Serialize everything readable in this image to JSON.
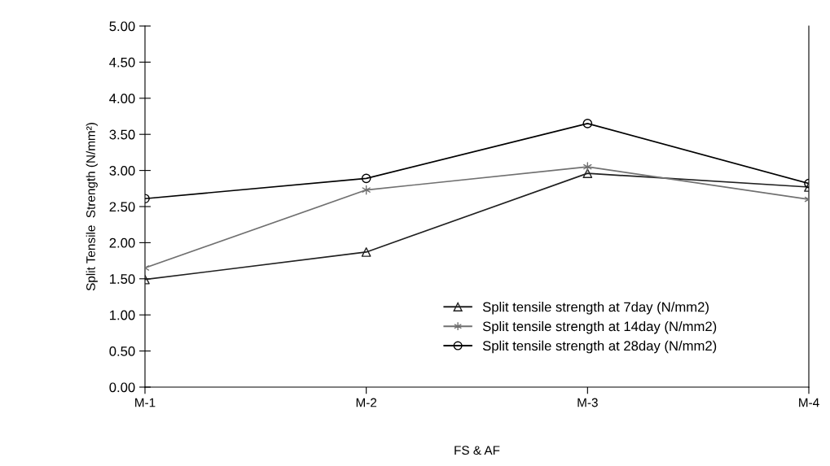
{
  "chart_data": {
    "type": "line",
    "xlabel": "FS & AF",
    "ylabel": "Split Tensile  Strength (N/mm²)",
    "categories": [
      "M-1",
      "M-2",
      "M-3",
      "M-4"
    ],
    "series": [
      {
        "name": "Split tensile strength at 7day (N/mm2)",
        "color": "#202020",
        "marker": "triangle",
        "values": [
          1.49,
          1.87,
          2.96,
          2.77
        ]
      },
      {
        "name": "Split tensile strength at 14day (N/mm2)",
        "color": "#707070",
        "marker": "cross",
        "values": [
          1.65,
          2.73,
          3.05,
          2.6
        ]
      },
      {
        "name": "Split tensile strength at 28day (N/mm2)",
        "color": "#000000",
        "marker": "circle",
        "values": [
          2.61,
          2.89,
          3.65,
          2.82
        ]
      }
    ],
    "ylim": [
      0,
      5
    ],
    "yticks": [
      {
        "value": 0,
        "label": "0.00"
      },
      {
        "value": 0.5,
        "label": "0.50"
      },
      {
        "value": 1,
        "label": "1.00"
      },
      {
        "value": 1.5,
        "label": "1.50"
      },
      {
        "value": 2,
        "label": "2.00"
      },
      {
        "value": 2.5,
        "label": "2.50"
      },
      {
        "value": 3,
        "label": "3.00"
      },
      {
        "value": 3.5,
        "label": "3.50"
      },
      {
        "value": 4,
        "label": "4.00"
      },
      {
        "value": 4.5,
        "label": "4.50"
      },
      {
        "value": 5,
        "label": "5.00"
      }
    ],
    "grid": false,
    "legend": "bottom right",
    "line_style": "solid"
  }
}
